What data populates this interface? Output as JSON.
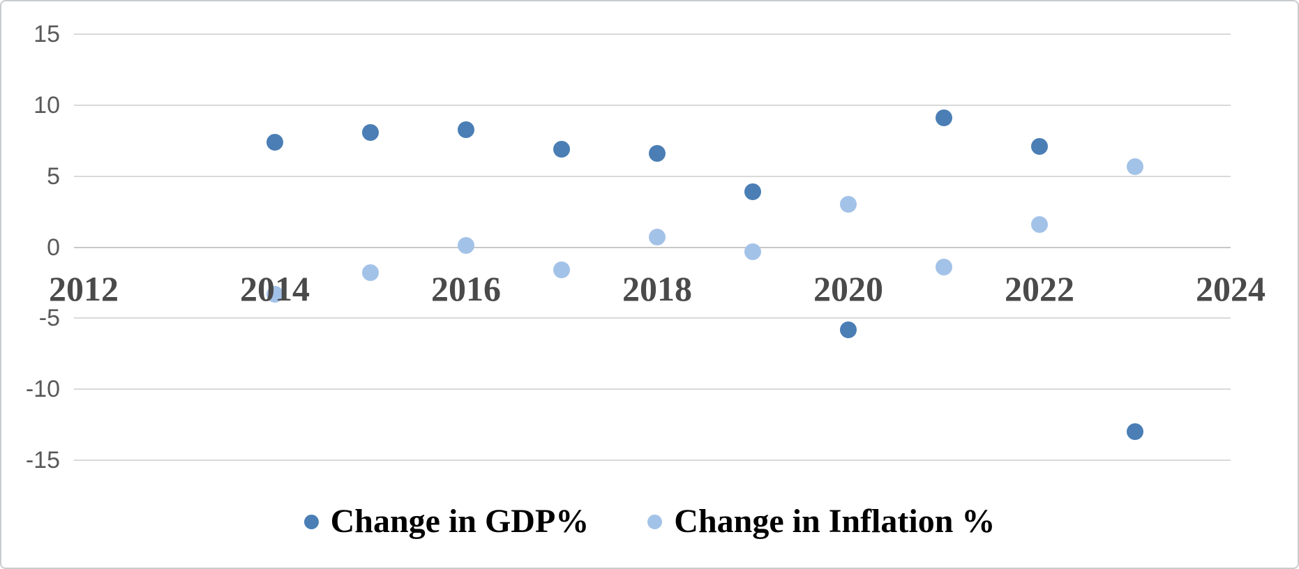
{
  "chart_data": {
    "type": "scatter",
    "x": [
      2014,
      2015,
      2016,
      2017,
      2018,
      2019,
      2020,
      2021,
      2022,
      2023
    ],
    "series": [
      {
        "name": "Change in GDP%",
        "color": "#4A7EB5",
        "values": [
          7.4,
          8.1,
          8.3,
          6.9,
          6.6,
          3.9,
          -5.8,
          9.1,
          7.1,
          -13.0
        ]
      },
      {
        "name": "Change in Inflation %",
        "color": "#A3C2E8",
        "values": [
          -3.3,
          -1.8,
          0.1,
          -1.6,
          0.7,
          -0.3,
          3.0,
          -1.4,
          1.6,
          5.7
        ]
      }
    ],
    "title": "",
    "xlabel": "",
    "ylabel": "",
    "xlim": [
      2012,
      2024
    ],
    "ylim": [
      -15,
      15
    ],
    "x_ticks": [
      2012,
      2014,
      2016,
      2018,
      2020,
      2022,
      2024
    ],
    "y_ticks": [
      15,
      10,
      5,
      0,
      -5,
      -10,
      -15
    ],
    "grid": "horizontal-only",
    "legend_position": "bottom-center"
  },
  "colors": {
    "background": "#FFFFFF",
    "frame_border": "#C9CCCE",
    "gridline": "#D9D9D9",
    "zero_line": "#C7C7C7",
    "y_tick_label": "#595959",
    "x_tick_label": "#4A4A4A",
    "legend_text": "#000000"
  }
}
